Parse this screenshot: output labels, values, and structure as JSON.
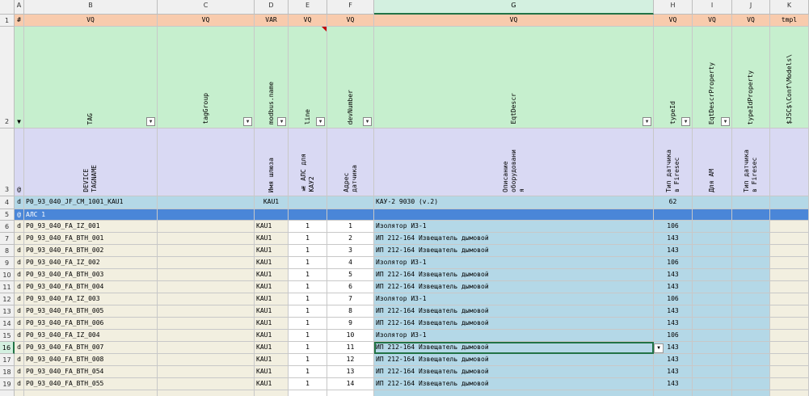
{
  "sheet": {
    "columns": [
      "A",
      "B",
      "C",
      "D",
      "E",
      "F",
      "G",
      "H",
      "I",
      "J",
      "K"
    ],
    "selected_column": "G",
    "selected_row": "16",
    "corner_label": "",
    "row1": {
      "row_number": "1",
      "cells": [
        "#",
        "VQ",
        "VQ",
        "VAR",
        "VQ",
        "VQ",
        "VQ",
        "VQ",
        "VQ",
        "VQ",
        "tmpl"
      ]
    },
    "row2": {
      "row_number": "2",
      "marker": "▼",
      "cells": [
        "",
        "TAG",
        "tagGroup",
        "modbus.name",
        "line",
        "devNumber",
        "EqtDescr",
        "typeId",
        "EqtDescrProperty",
        "typeIdProperty",
        "$JSC$\\Conf\\Models\\"
      ]
    },
    "row3": {
      "row_number": "3",
      "marker": "@",
      "cells": [
        "",
        "DEVICE\nTAGNAME",
        "",
        "Имя шлюза",
        "№ АЛС для\nКАУ2",
        "Адрес\nдатчика",
        "Описание\nоборудовани\nя",
        "Тип датчика\nв Firesec",
        "Для АМ",
        "Тип датчика\nв Firesec",
        ""
      ]
    },
    "row4": {
      "row_number": "4",
      "marker": "d",
      "cells": [
        "P0_93_040_JF_CM_1001_KAU1",
        "",
        "KAU1",
        "",
        "",
        "КАУ-2 9030 (v.2)",
        "62",
        "",
        "",
        ""
      ]
    },
    "row5": {
      "row_number": "5",
      "marker": "@",
      "label": "АЛС 1"
    },
    "data_rows": [
      {
        "n": "6",
        "m": "d",
        "tag": "P0_93_040_FA_IZ_001",
        "gw": "KAU1",
        "line": "1",
        "addr": "1",
        "descr": "Изолятор ИЗ-1",
        "type": "106"
      },
      {
        "n": "7",
        "m": "d",
        "tag": "P0_93_040_FA_BTH_001",
        "gw": "KAU1",
        "line": "1",
        "addr": "2",
        "descr": "ИП 212-164 Извещатель дымовой",
        "type": "143"
      },
      {
        "n": "8",
        "m": "d",
        "tag": "P0_93_040_FA_BTH_002",
        "gw": "KAU1",
        "line": "1",
        "addr": "3",
        "descr": "ИП 212-164 Извещатель дымовой",
        "type": "143"
      },
      {
        "n": "9",
        "m": "d",
        "tag": "P0_93_040_FA_IZ_002",
        "gw": "KAU1",
        "line": "1",
        "addr": "4",
        "descr": "Изолятор ИЗ-1",
        "type": "106"
      },
      {
        "n": "10",
        "m": "d",
        "tag": "P0_93_040_FA_BTH_003",
        "gw": "KAU1",
        "line": "1",
        "addr": "5",
        "descr": "ИП 212-164 Извещатель дымовой",
        "type": "143"
      },
      {
        "n": "11",
        "m": "d",
        "tag": "P0_93_040_FA_BTH_004",
        "gw": "KAU1",
        "line": "1",
        "addr": "6",
        "descr": "ИП 212-164 Извещатель дымовой",
        "type": "143"
      },
      {
        "n": "12",
        "m": "d",
        "tag": "P0_93_040_FA_IZ_003",
        "gw": "KAU1",
        "line": "1",
        "addr": "7",
        "descr": "Изолятор ИЗ-1",
        "type": "106"
      },
      {
        "n": "13",
        "m": "d",
        "tag": "P0_93_040_FA_BTH_005",
        "gw": "KAU1",
        "line": "1",
        "addr": "8",
        "descr": "ИП 212-164 Извещатель дымовой",
        "type": "143"
      },
      {
        "n": "14",
        "m": "d",
        "tag": "P0_93_040_FA_BTH_006",
        "gw": "KAU1",
        "line": "1",
        "addr": "9",
        "descr": "ИП 212-164 Извещатель дымовой",
        "type": "143"
      },
      {
        "n": "15",
        "m": "d",
        "tag": "P0_93_040_FA_IZ_004",
        "gw": "KAU1",
        "line": "1",
        "addr": "10",
        "descr": "Изолятор ИЗ-1",
        "type": "106"
      },
      {
        "n": "16",
        "m": "d",
        "tag": "P0_93_040_FA_BTH_007",
        "gw": "KAU1",
        "line": "1",
        "addr": "11",
        "descr": "ИП 212-164 Извещатель дымовой",
        "type": "143"
      },
      {
        "n": "17",
        "m": "d",
        "tag": "P0_93_040_FA_BTH_008",
        "gw": "KAU1",
        "line": "1",
        "addr": "12",
        "descr": "ИП 212-164 Извещатель дымовой",
        "type": "143"
      },
      {
        "n": "18",
        "m": "d",
        "tag": "P0_93_040_FA_BTH_054",
        "gw": "KAU1",
        "line": "1",
        "addr": "13",
        "descr": "ИП 212-164 Извещатель дымовой",
        "type": "143"
      },
      {
        "n": "19",
        "m": "d",
        "tag": "P0_93_040_FA_BTH_055",
        "gw": "KAU1",
        "line": "1",
        "addr": "14",
        "descr": "ИП 212-164 Извещатель дымовой",
        "type": "143"
      }
    ],
    "filter_glyph": "▼",
    "dropdown_glyph": "▼"
  }
}
